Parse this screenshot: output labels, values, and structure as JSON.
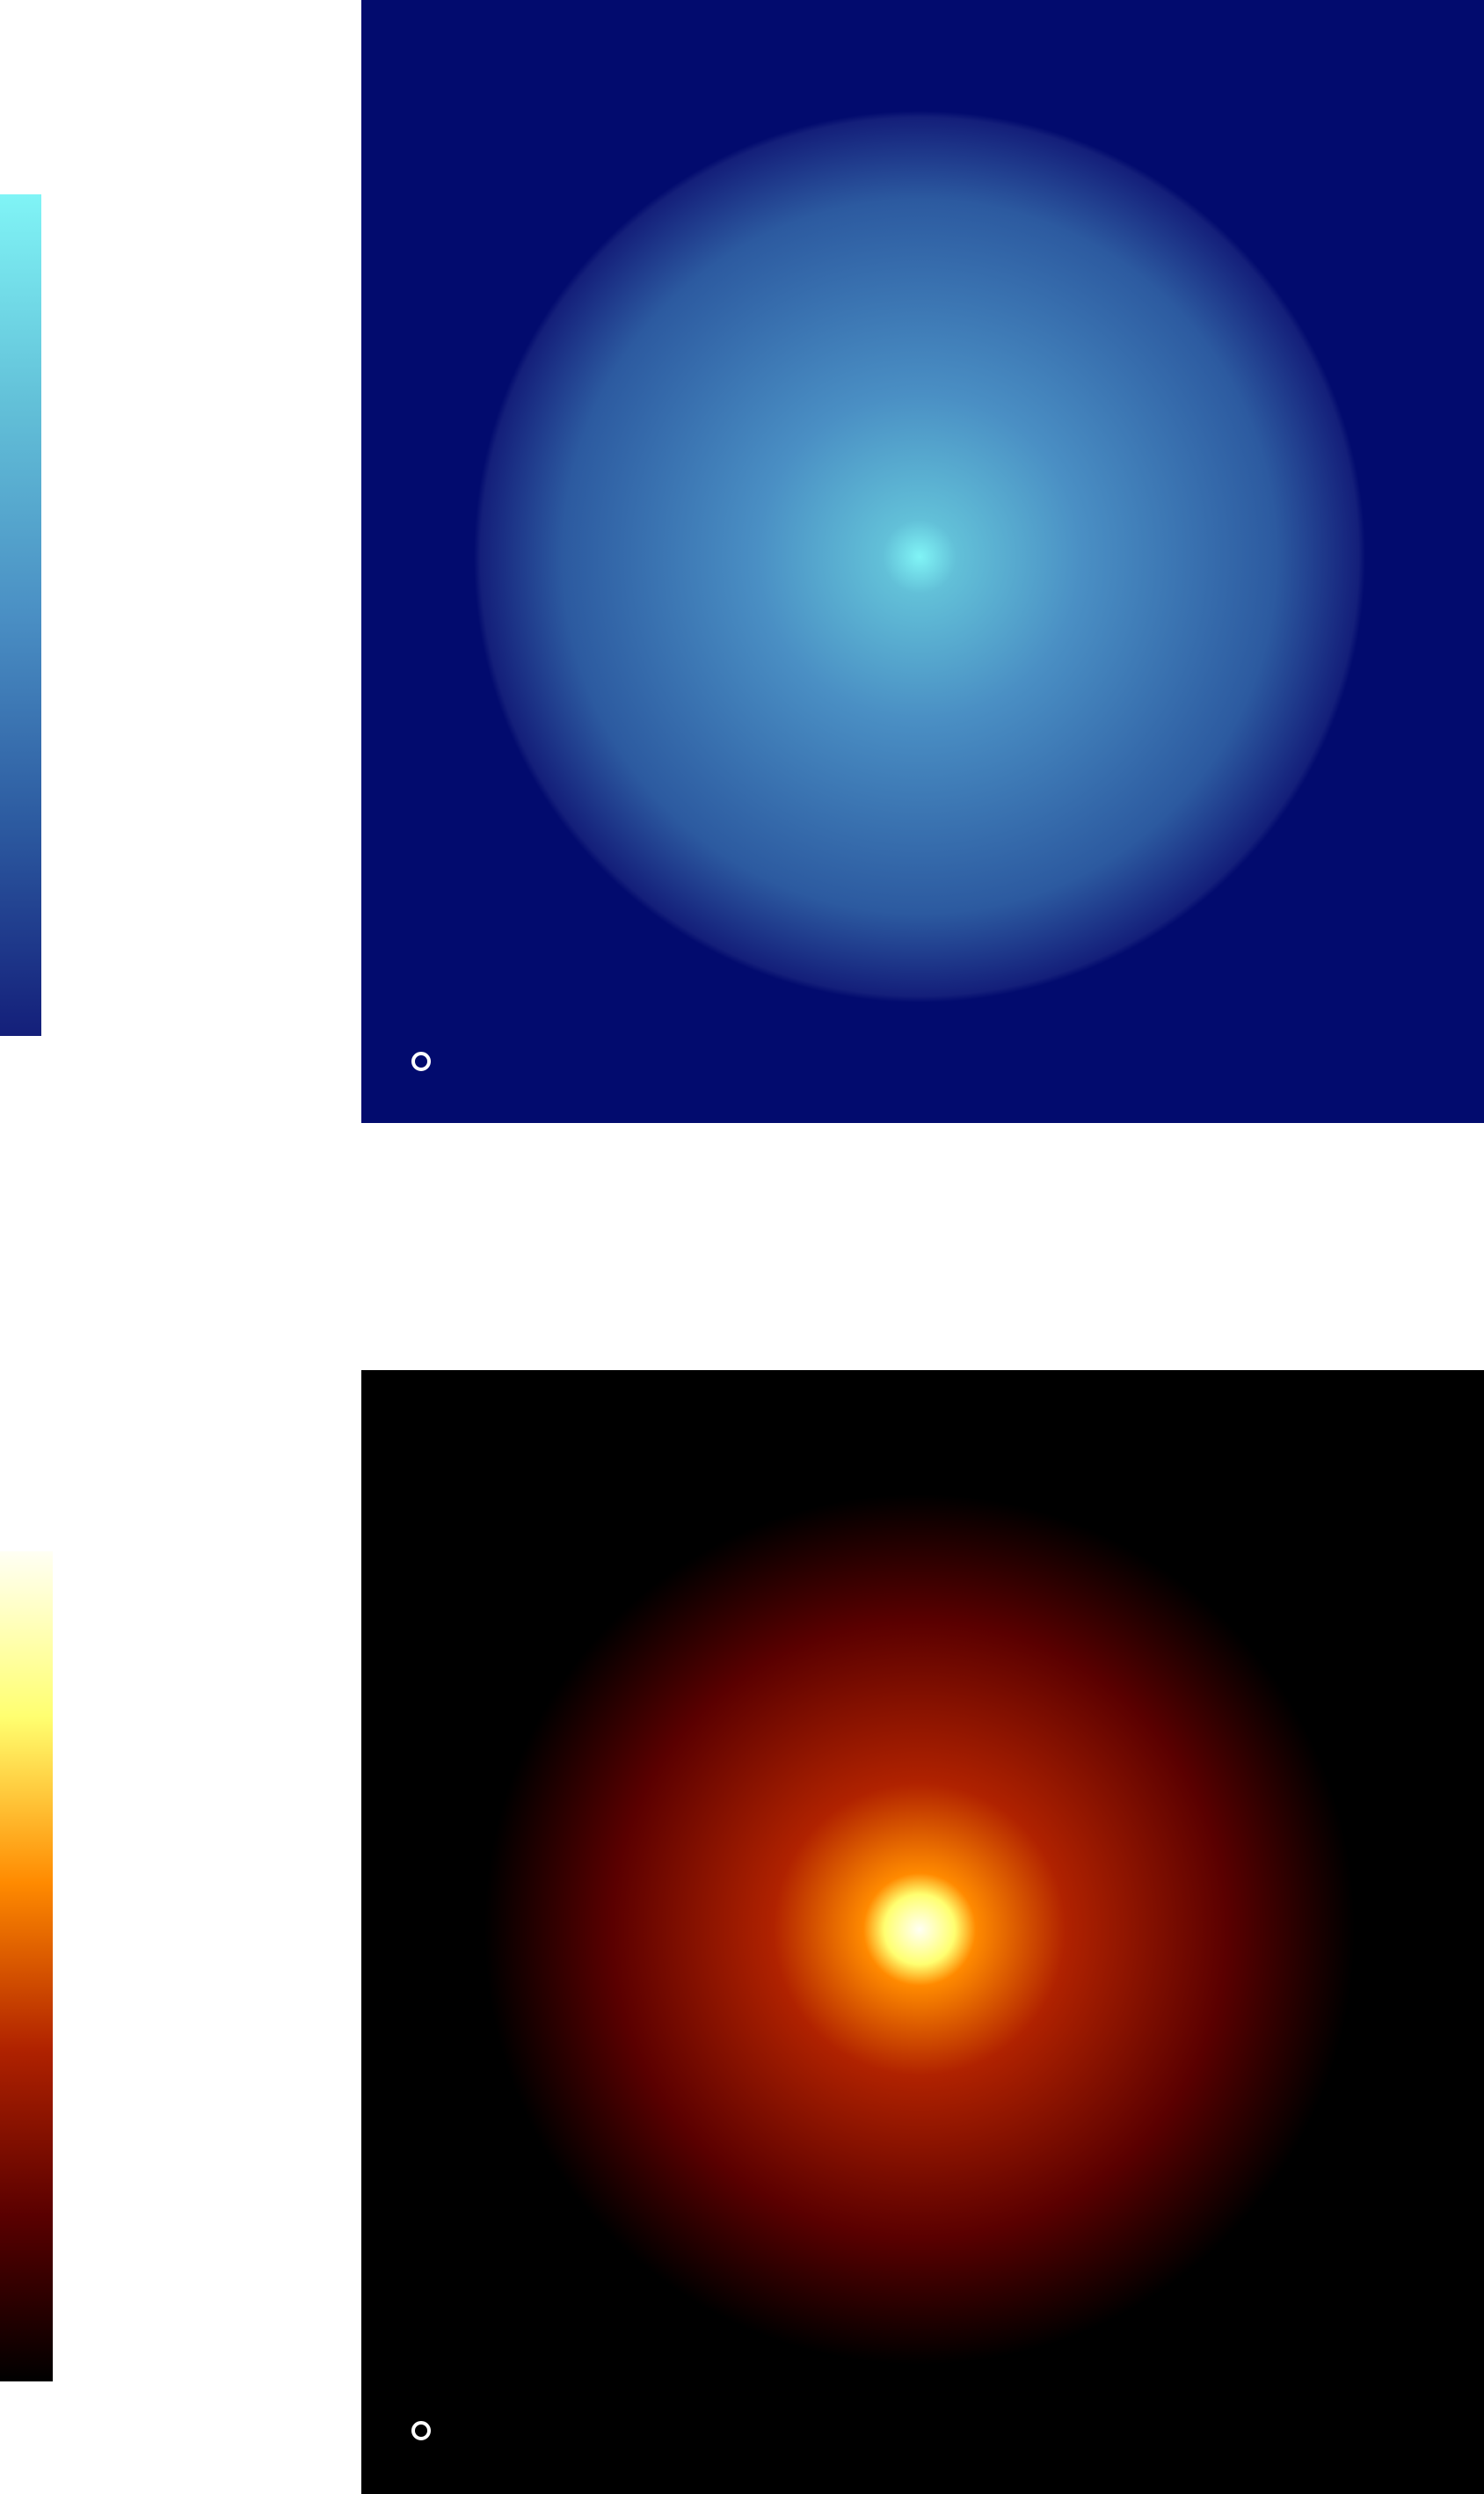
{
  "panels": [
    {
      "colormap": [
        "#141f7a",
        "#2c5aa0",
        "#4a8fc4",
        "#62c0d8",
        "#80f4f6"
      ],
      "background": "#020b6e"
    },
    {
      "colormap": [
        "#000000",
        "#5a0000",
        "#b02200",
        "#ff8a00",
        "#ffff70",
        "#fffff4"
      ],
      "background": "#000000"
    }
  ]
}
